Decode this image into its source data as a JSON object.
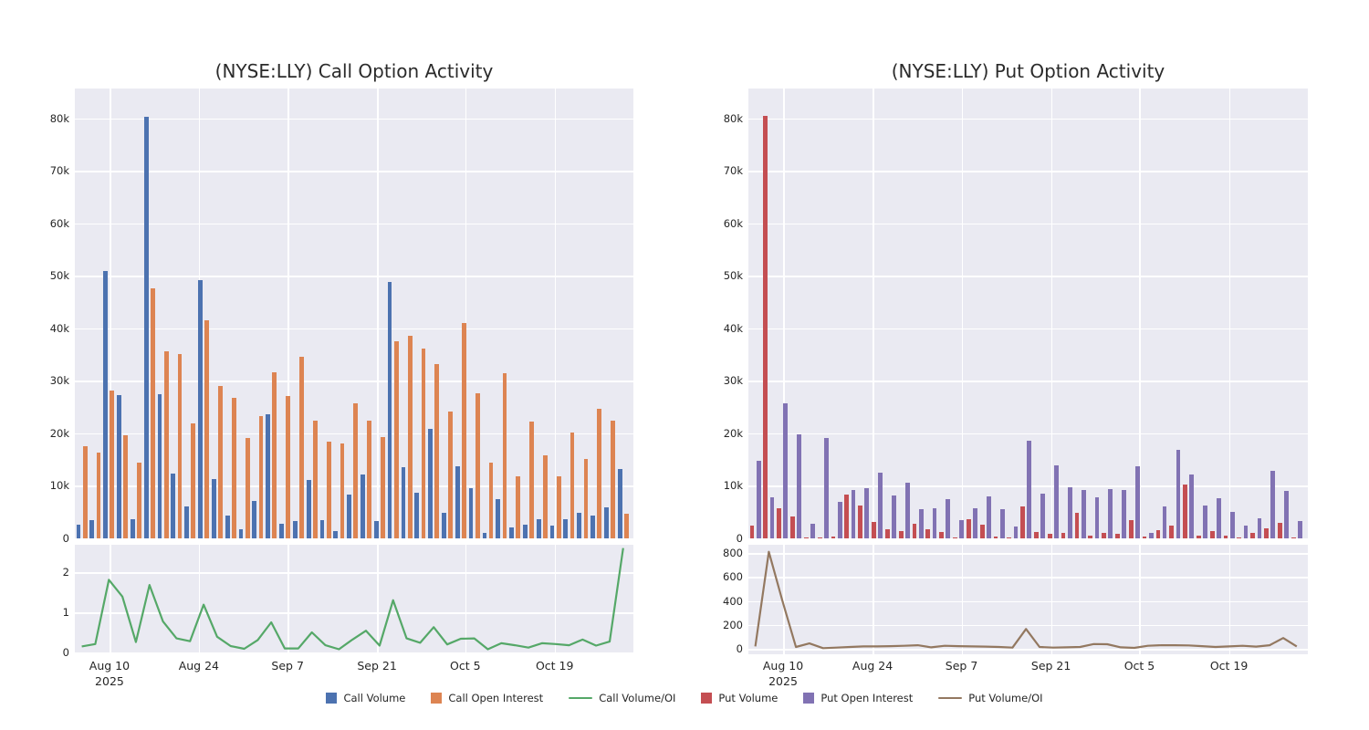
{
  "figure": {
    "background": "#ffffff",
    "panel_background": "#eaeaf2",
    "grid_color": "#ffffff",
    "text_color": "#262626"
  },
  "legend": {
    "items": [
      {
        "label": "Call Volume",
        "color": "#4c72b0",
        "swatch": "square"
      },
      {
        "label": "Call Open Interest",
        "color": "#dd8452",
        "swatch": "square"
      },
      {
        "label": "Call Volume/OI",
        "color": "#55a868",
        "swatch": "line"
      },
      {
        "label": "Put Volume",
        "color": "#c44e52",
        "swatch": "square"
      },
      {
        "label": "Put Open Interest",
        "color": "#8172b3",
        "swatch": "square"
      },
      {
        "label": "Put Volume/OI",
        "color": "#937860",
        "swatch": "line"
      }
    ]
  },
  "chart_data": [
    {
      "type": "bar",
      "title": "(NYSE:LLY) Call Option Activity",
      "n_points": 41,
      "x_note": "41 option trading dates, Aug 2025 - Oct 2025, only axis ticks labeled",
      "x_ticks": [
        {
          "label": "Aug 10",
          "sublabel": "2025",
          "pos": 0.062
        },
        {
          "label": "Aug 24",
          "pos": 0.222
        },
        {
          "label": "Sep 7",
          "pos": 0.381
        },
        {
          "label": "Sep 21",
          "pos": 0.541
        },
        {
          "label": "Oct 5",
          "pos": 0.699
        },
        {
          "label": "Oct 19",
          "pos": 0.859
        }
      ],
      "ylim": [
        0,
        85000
      ],
      "y_ticks": [
        {
          "value": 0,
          "label": "0"
        },
        {
          "value": 10000,
          "label": "10k"
        },
        {
          "value": 20000,
          "label": "20k"
        },
        {
          "value": 30000,
          "label": "30k"
        },
        {
          "value": 40000,
          "label": "40k"
        },
        {
          "value": 50000,
          "label": "50k"
        },
        {
          "value": 60000,
          "label": "60k"
        },
        {
          "value": 70000,
          "label": "70k"
        },
        {
          "value": 80000,
          "label": "80k"
        }
      ],
      "series": [
        {
          "name": "Call Volume",
          "color": "#4c72b0",
          "values": [
            2600,
            3400,
            51000,
            27300,
            3700,
            80300,
            27400,
            12400,
            6100,
            49300,
            11300,
            4300,
            1800,
            7200,
            23700,
            2800,
            3300,
            11200,
            3400,
            1400,
            8300,
            12100,
            3300,
            48900,
            13500,
            8700,
            20800,
            4900,
            13800,
            9600,
            1100,
            7400,
            2100,
            2600,
            3700,
            2500,
            3600,
            4900,
            4300,
            6000,
            13200
          ]
        },
        {
          "name": "Call Open Interest",
          "color": "#dd8452",
          "values": [
            17500,
            16400,
            28200,
            19700,
            14400,
            47700,
            35700,
            35200,
            22000,
            41500,
            29100,
            26800,
            19200,
            23300,
            31600,
            27100,
            34600,
            22400,
            18400,
            18100,
            25700,
            22400,
            19300,
            37500,
            38600,
            36200,
            33200,
            24100,
            41100,
            27600,
            14400,
            31500,
            11900,
            22300,
            15900,
            11800,
            20200,
            15100,
            24700,
            22500,
            4700
          ]
        }
      ],
      "subpanel": {
        "type": "line",
        "name": "Call Volume/OI",
        "color": "#55a868",
        "ylim": [
          0,
          2.7
        ],
        "y_ticks": [
          {
            "value": 0,
            "label": "0"
          },
          {
            "value": 1,
            "label": "1"
          },
          {
            "value": 2,
            "label": "2"
          }
        ],
        "values": [
          0.15,
          0.21,
          1.81,
          1.39,
          0.26,
          1.68,
          0.77,
          0.35,
          0.28,
          1.19,
          0.39,
          0.16,
          0.09,
          0.31,
          0.75,
          0.1,
          0.1,
          0.5,
          0.18,
          0.08,
          0.32,
          0.54,
          0.17,
          1.3,
          0.35,
          0.24,
          0.63,
          0.2,
          0.34,
          0.35,
          0.08,
          0.23,
          0.18,
          0.12,
          0.23,
          0.21,
          0.18,
          0.32,
          0.17,
          0.27,
          2.6
        ]
      }
    },
    {
      "type": "bar",
      "title": "(NYSE:LLY) Put Option Activity",
      "n_points": 41,
      "x_note": "41 option trading dates, Aug 2025 - Oct 2025, only axis ticks labeled",
      "x_ticks": [
        {
          "label": "Aug 10",
          "sublabel": "2025",
          "pos": 0.062
        },
        {
          "label": "Aug 24",
          "pos": 0.222
        },
        {
          "label": "Sep 7",
          "pos": 0.381
        },
        {
          "label": "Sep 21",
          "pos": 0.541
        },
        {
          "label": "Oct 5",
          "pos": 0.699
        },
        {
          "label": "Oct 19",
          "pos": 0.859
        }
      ],
      "ylim": [
        0,
        85000
      ],
      "y_ticks": [
        {
          "value": 0,
          "label": "0"
        },
        {
          "value": 10000,
          "label": "10k"
        },
        {
          "value": 20000,
          "label": "20k"
        },
        {
          "value": 30000,
          "label": "30k"
        },
        {
          "value": 40000,
          "label": "40k"
        },
        {
          "value": 50000,
          "label": "50k"
        },
        {
          "value": 60000,
          "label": "60k"
        },
        {
          "value": 70000,
          "label": "70k"
        },
        {
          "value": 80000,
          "label": "80k"
        }
      ],
      "series": [
        {
          "name": "Put Volume",
          "color": "#c44e52",
          "values": [
            2400,
            80600,
            5700,
            4200,
            200,
            200,
            300,
            8300,
            6300,
            3200,
            1800,
            1400,
            2800,
            1700,
            1300,
            100,
            3600,
            2600,
            400,
            200,
            6100,
            1300,
            900,
            1100,
            4900,
            600,
            1000,
            900,
            3400,
            300,
            1600,
            2500,
            10300,
            500,
            1400,
            500,
            200,
            1000,
            2000,
            3000,
            200
          ]
        },
        {
          "name": "Put Open Interest",
          "color": "#8172b3",
          "values": [
            14700,
            7800,
            25700,
            19800,
            2800,
            19100,
            7000,
            9300,
            9500,
            12500,
            8200,
            10600,
            5500,
            5700,
            7400,
            3400,
            5700,
            8000,
            5600,
            2300,
            18600,
            8500,
            14000,
            9800,
            9300,
            7900,
            9400,
            9200,
            13800,
            1100,
            6100,
            16900,
            12200,
            6300,
            7700,
            5100,
            2400,
            3900,
            12800,
            9100,
            3300
          ]
        }
      ],
      "subpanel": {
        "type": "line",
        "name": "Put Volume/OI",
        "color": "#937860",
        "ylim": [
          0,
          860
        ],
        "y_ticks": [
          {
            "value": 0,
            "label": "0"
          },
          {
            "value": 200,
            "label": "200"
          },
          {
            "value": 400,
            "label": "400"
          },
          {
            "value": 600,
            "label": "600"
          },
          {
            "value": 800,
            "label": "800"
          }
        ],
        "values": [
          20,
          810,
          400,
          15,
          45,
          5,
          10,
          15,
          20,
          20,
          22,
          25,
          30,
          12,
          25,
          22,
          20,
          18,
          15,
          10,
          165,
          15,
          10,
          12,
          15,
          40,
          38,
          12,
          8,
          25,
          30,
          30,
          28,
          22,
          15,
          20,
          25,
          18,
          30,
          90,
          20
        ]
      }
    }
  ]
}
